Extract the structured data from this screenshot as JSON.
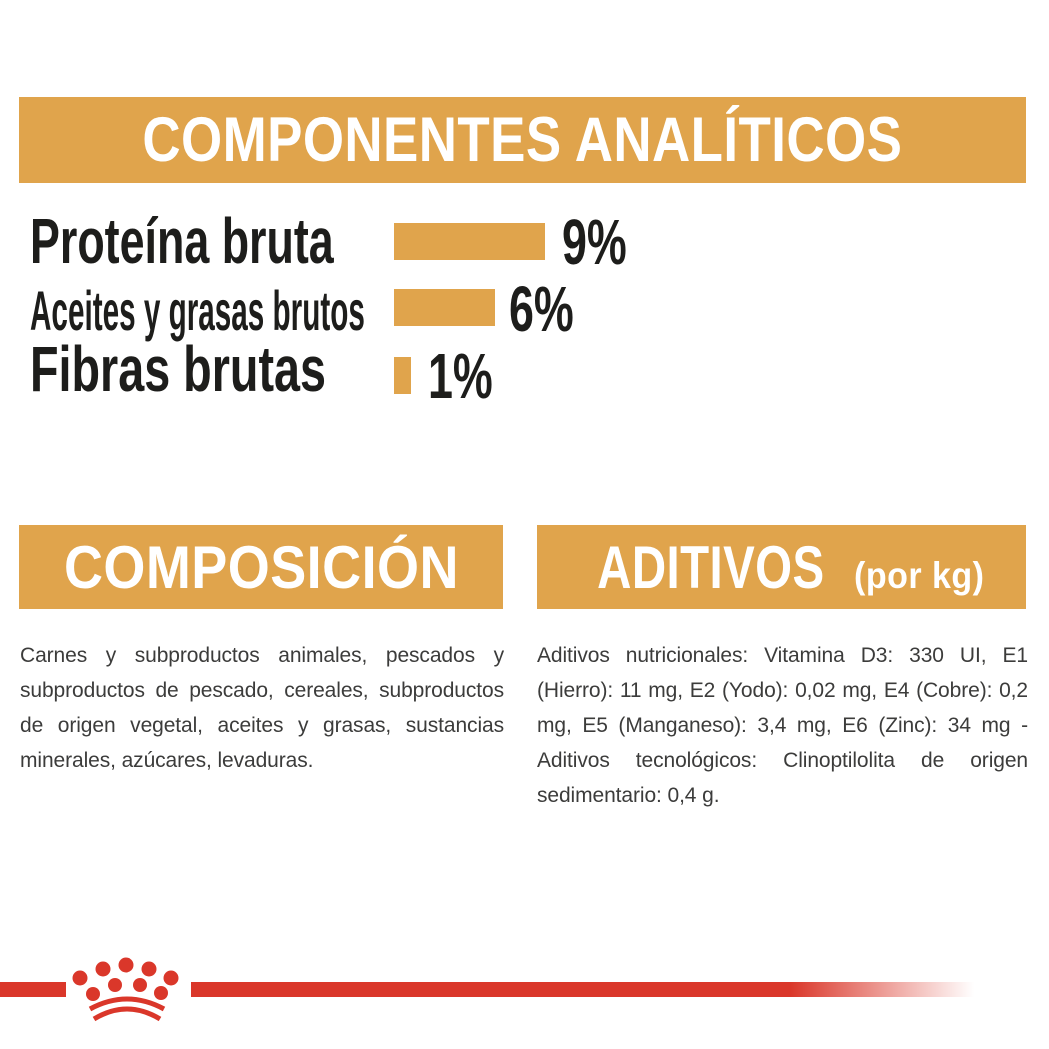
{
  "colors": {
    "gold": "#E0A44C",
    "red": "#DA372A",
    "label_black": "#1D1D1B",
    "body_gray": "#3C3C3B",
    "banner_text": "#FFFFFF"
  },
  "analytics": {
    "title": "COMPONENTES ANALÍTICOS",
    "rows": [
      {
        "label": "Proteína bruta",
        "value": 9,
        "value_label": "9%"
      },
      {
        "label": "Aceites y grasas brutos",
        "value": 6,
        "value_label": "6%"
      },
      {
        "label": "Fibras brutas",
        "value": 1,
        "value_label": "1%"
      }
    ]
  },
  "composition": {
    "title": "COMPOSICIÓN",
    "body": "Carnes y subproductos animales, pescados y subproductos de pescado, cereales, subproductos de origen vegetal, aceites y grasas, sustancias minerales, azúcares, levaduras."
  },
  "additives": {
    "title": "ADITIVOS",
    "unit_label": "(por kg)",
    "body": "Aditivos nutricionales: Vitamina D3: 330 UI, E1 (Hierro): 11 mg, E2 (Yodo): 0,02 mg, E4 (Cobre): 0,2 mg, E5 (Manganeso): 3,4 mg, E6 (Zinc): 34 mg - Aditivos tecnológicos: Clinoptilolita de origen sedimentario: 0,4 g."
  },
  "logo": {
    "name": "royal-canin-crown"
  },
  "chart_data": {
    "type": "bar",
    "orientation": "horizontal",
    "title": "COMPONENTES ANALÍTICOS",
    "categories": [
      "Proteína bruta",
      "Aceites y grasas brutos",
      "Fibras brutas"
    ],
    "values": [
      9,
      6,
      1
    ],
    "unit": "%",
    "value_labels": [
      "9%",
      "6%",
      "1%"
    ],
    "xlim": [
      0,
      9
    ],
    "bar_color": "#E0A44C",
    "grid": false,
    "legend": false
  }
}
